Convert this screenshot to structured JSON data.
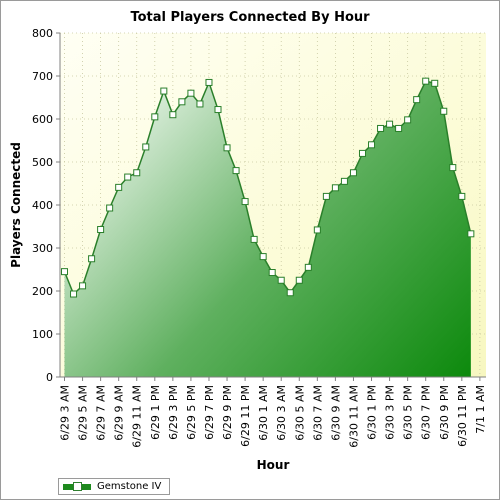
{
  "chart_data": {
    "type": "area",
    "title": "Total Players Connected By Hour",
    "xlabel": "Hour",
    "ylabel": "Players Connected",
    "ylim": [
      0,
      800
    ],
    "yticks": [
      0,
      100,
      200,
      300,
      400,
      500,
      600,
      700,
      800
    ],
    "xticks": [
      "6/29 3 AM",
      "6/29 5 AM",
      "6/29 7 AM",
      "6/29 9 AM",
      "6/29 11 AM",
      "6/29 1 PM",
      "6/29 3 PM",
      "6/29 5 PM",
      "6/29 7 PM",
      "6/29 9 PM",
      "6/29 11 PM",
      "6/30 1 AM",
      "6/30 3 AM",
      "6/30 5 AM",
      "6/30 7 AM",
      "6/30 9 AM",
      "6/30 11 AM",
      "6/30 1 PM",
      "6/30 3 PM",
      "6/30 5 PM",
      "6/30 7 PM",
      "6/30 9 PM",
      "6/30 11 PM",
      "7/1 1 AM"
    ],
    "grid": true,
    "legend": "bottom-left",
    "series": [
      {
        "name": "Gemstone IV",
        "color": "#1e8a1e",
        "x": [
          "6/29 3 AM",
          "6/29 4 AM",
          "6/29 5 AM",
          "6/29 6 AM",
          "6/29 7 AM",
          "6/29 8 AM",
          "6/29 9 AM",
          "6/29 10 AM",
          "6/29 11 AM",
          "6/29 12 PM",
          "6/29 1 PM",
          "6/29 2 PM",
          "6/29 3 PM",
          "6/29 4 PM",
          "6/29 5 PM",
          "6/29 6 PM",
          "6/29 7 PM",
          "6/29 8 PM",
          "6/29 9 PM",
          "6/29 10 PM",
          "6/29 11 PM",
          "6/30 12 AM",
          "6/30 1 AM",
          "6/30 2 AM",
          "6/30 3 AM",
          "6/30 4 AM",
          "6/30 5 AM",
          "6/30 6 AM",
          "6/30 7 AM",
          "6/30 8 AM",
          "6/30 9 AM",
          "6/30 10 AM",
          "6/30 11 AM",
          "6/30 12 PM",
          "6/30 1 PM",
          "6/30 2 PM",
          "6/30 3 PM",
          "6/30 4 PM",
          "6/30 5 PM",
          "6/30 6 PM",
          "6/30 7 PM",
          "6/30 8 PM",
          "6/30 9 PM",
          "6/30 10 PM",
          "6/30 11 PM",
          "7/1 12 AM"
        ],
        "values": [
          245,
          193,
          212,
          275,
          343,
          393,
          441,
          465,
          475,
          535,
          605,
          665,
          610,
          640,
          660,
          635,
          685,
          622,
          533,
          480,
          408,
          320,
          280,
          243,
          225,
          196,
          225,
          255,
          342,
          420,
          440,
          455,
          475,
          520,
          540,
          578,
          588,
          578,
          598,
          645,
          688,
          683,
          618,
          487,
          420,
          333
        ]
      }
    ]
  }
}
